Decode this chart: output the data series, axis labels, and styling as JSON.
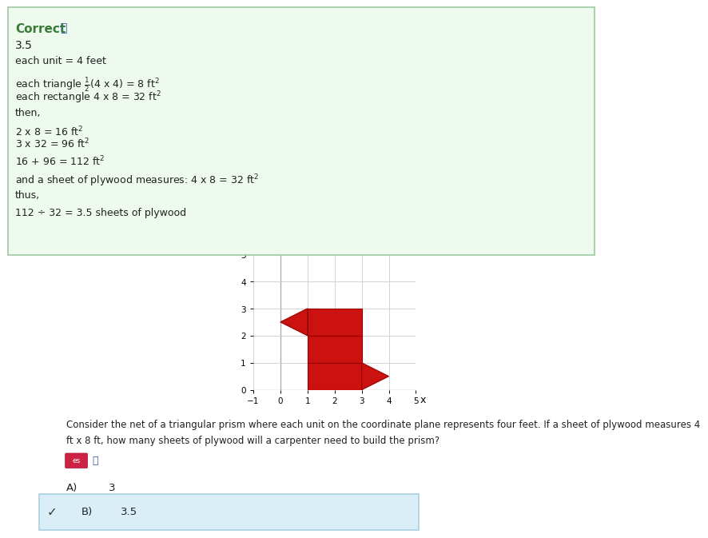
{
  "bg_color_top": "#edfaed",
  "correct_label": "Correct",
  "answer_value": "3.5",
  "correct_color": "#3a7d3a",
  "text_color": "#222222",
  "shape_color": "#cc1111",
  "shape_edge_color": "#990000",
  "net_polygons": [
    [
      [
        1,
        2
      ],
      [
        3,
        2
      ],
      [
        3,
        3
      ],
      [
        1,
        3
      ]
    ],
    [
      [
        1,
        1
      ],
      [
        3,
        1
      ],
      [
        3,
        2
      ],
      [
        1,
        2
      ]
    ],
    [
      [
        1,
        0
      ],
      [
        3,
        0
      ],
      [
        3,
        1
      ],
      [
        1,
        1
      ]
    ],
    [
      [
        1,
        2
      ],
      [
        0,
        2.5
      ],
      [
        1,
        3
      ]
    ],
    [
      [
        3,
        0
      ],
      [
        4,
        0.5
      ],
      [
        3,
        1
      ]
    ]
  ],
  "dividing_lines": [
    [
      [
        1,
        1
      ],
      [
        3,
        1
      ]
    ],
    [
      [
        1,
        2
      ],
      [
        3,
        2
      ]
    ]
  ],
  "xlim": [
    -1,
    5
  ],
  "ylim": [
    0,
    5
  ],
  "answer_A": "3",
  "answer_B": "3.5",
  "answer_bg": "#daeef8",
  "answer_border": "#aacfe0",
  "green_border": "#a0c8a0",
  "icon_es_bg": "#cc2244",
  "speaker_color": "#3355aa",
  "question_text_line1": "Consider the net of a triangular prism where each unit on the coordinate plane represents four feet. If a sheet of plywood measures 4",
  "question_text_line2": "ft x 8 ft, how many sheets of plywood will a carpenter need to build the prism?"
}
